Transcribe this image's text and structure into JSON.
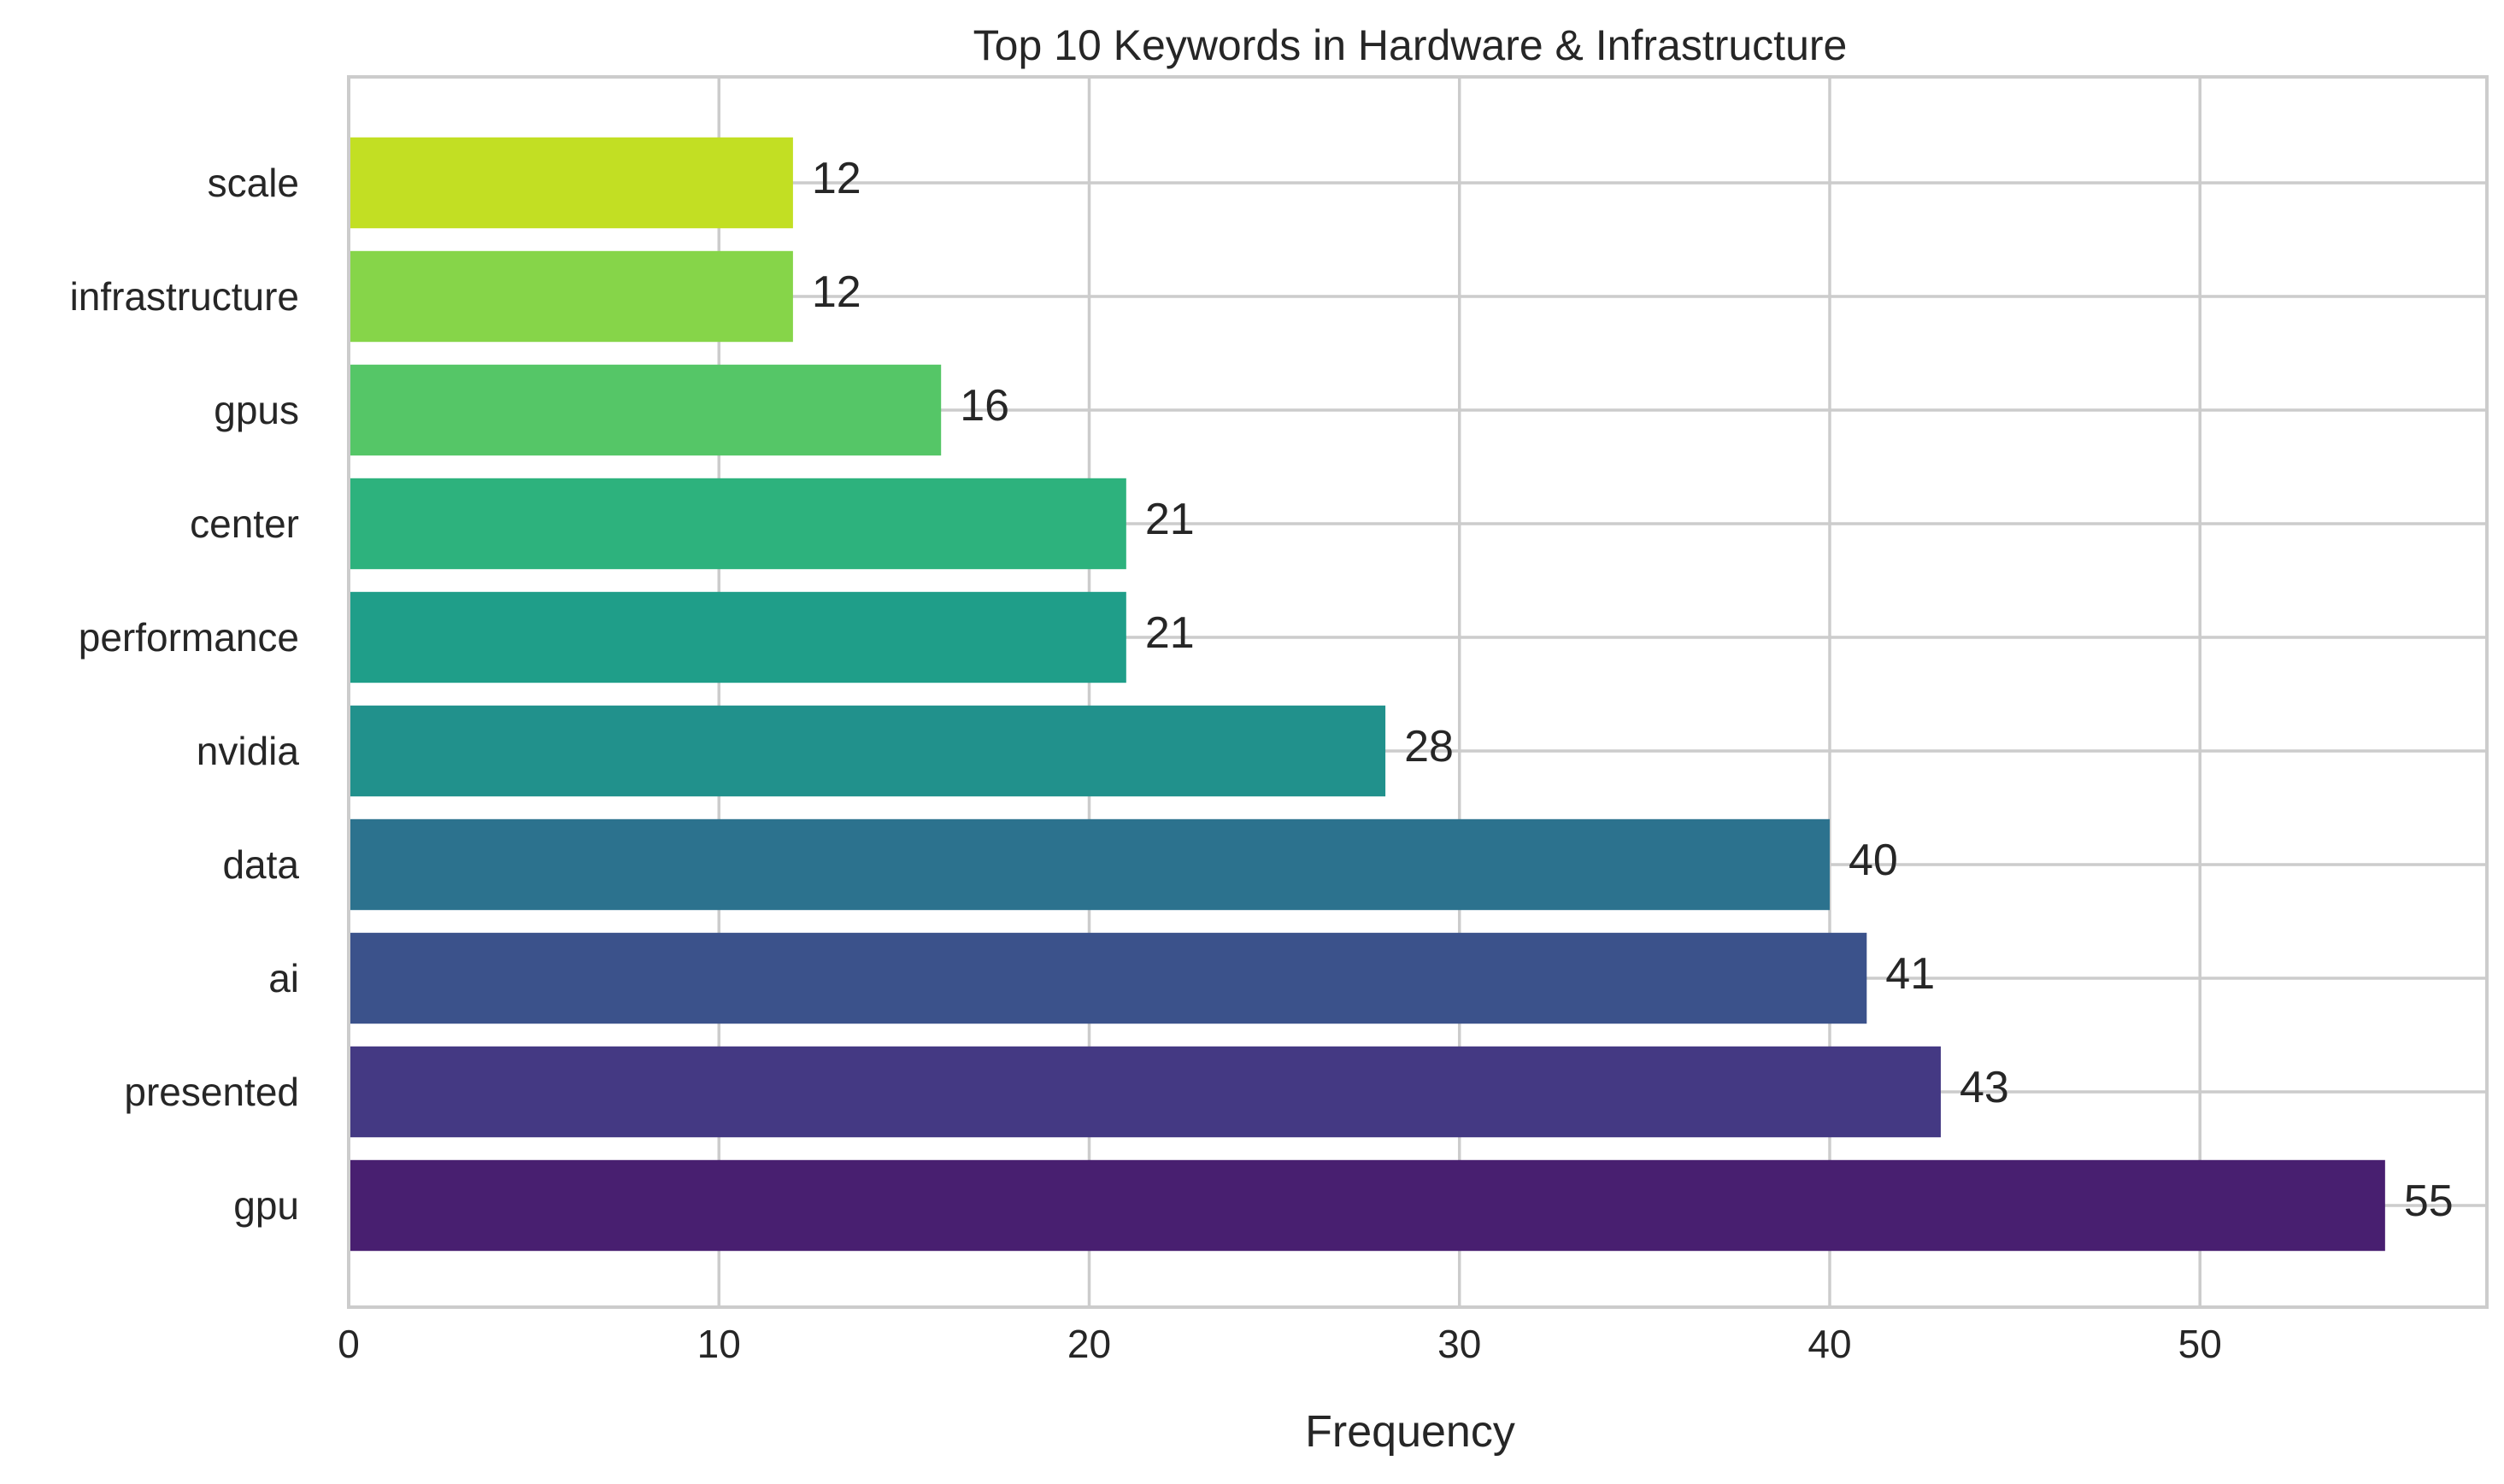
{
  "chart_data": {
    "type": "bar",
    "orientation": "horizontal",
    "title": "Top 10 Keywords in Hardware & Infrastructure",
    "xlabel": "Frequency",
    "ylabel": "",
    "xlim": [
      0,
      57.75
    ],
    "x_ticks": [
      0,
      10,
      20,
      30,
      40,
      50
    ],
    "grid": true,
    "categories": [
      "gpu",
      "presented",
      "ai",
      "data",
      "nvidia",
      "performance",
      "center",
      "gpus",
      "infrastructure",
      "scale"
    ],
    "values": [
      55,
      43,
      41,
      40,
      28,
      21,
      21,
      16,
      12,
      12
    ],
    "colors": [
      "#481f70",
      "#443983",
      "#3b528b",
      "#2c728e",
      "#21918c",
      "#1f9e89",
      "#2db27d",
      "#55c667",
      "#86d549",
      "#c2df23"
    ]
  }
}
